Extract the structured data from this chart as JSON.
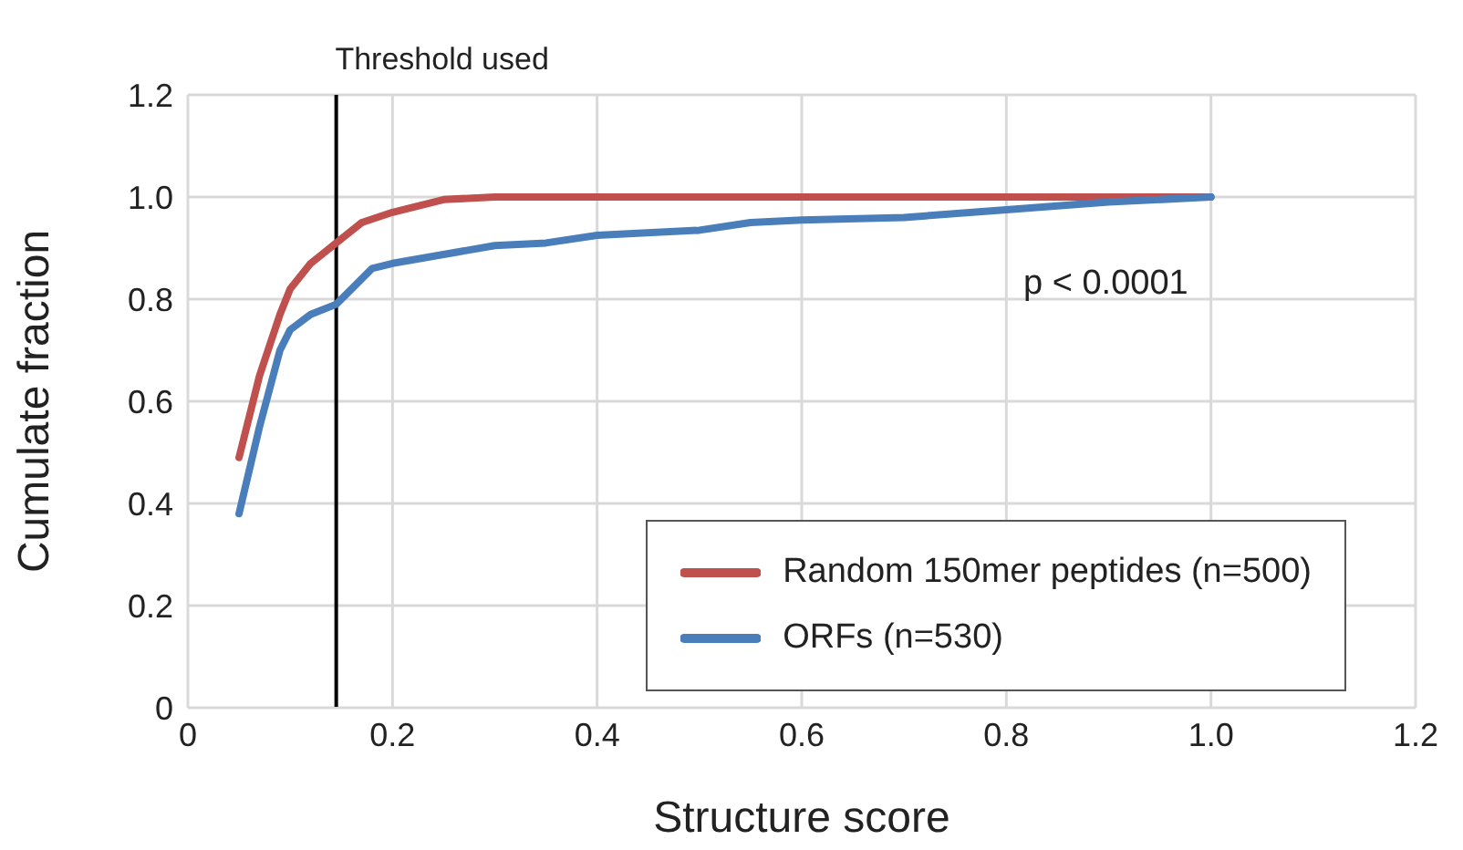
{
  "chart_data": {
    "type": "line",
    "xlabel": "Structure score",
    "ylabel": "Cumulate fraction",
    "xlim": [
      0,
      1.2
    ],
    "xticks": [
      0,
      0.2,
      0.4,
      0.6,
      0.8,
      {
        "value": 1,
        "label": "1.0"
      },
      1.2
    ],
    "ylim": [
      0,
      1.2
    ],
    "yticks": [
      0,
      0.2,
      0.4,
      0.6,
      0.8,
      {
        "value": 1,
        "label": "1.0"
      },
      1.2
    ],
    "grid": true,
    "legend": "bottom right",
    "marker": "none",
    "line_style": "solid",
    "series": [
      {
        "name": "Random 150mer peptides (n=500)",
        "color": "#c0504d",
        "x": [
          0.05,
          0.07,
          0.09,
          0.1,
          0.12,
          0.145,
          0.17,
          0.2,
          0.25,
          0.3,
          0.5,
          1.0
        ],
        "values": [
          0.49,
          0.65,
          0.77,
          0.82,
          0.87,
          0.91,
          0.95,
          0.97,
          0.995,
          1.0,
          1.0,
          1.0
        ]
      },
      {
        "name": "ORFs (n=530)",
        "color": "#4a7ebb",
        "x": [
          0.05,
          0.07,
          0.09,
          0.1,
          0.12,
          0.145,
          0.16,
          0.18,
          0.2,
          0.3,
          0.35,
          0.4,
          0.5,
          0.55,
          0.6,
          0.7,
          0.8,
          0.9,
          1.0
        ],
        "values": [
          0.38,
          0.55,
          0.7,
          0.74,
          0.77,
          0.79,
          0.82,
          0.86,
          0.87,
          0.905,
          0.91,
          0.925,
          0.935,
          0.95,
          0.955,
          0.96,
          0.975,
          0.99,
          1.0
        ]
      }
    ],
    "ref_lines": [
      {
        "axis": "x",
        "value": 0.145,
        "label": "Threshold used",
        "color": "#000000"
      }
    ],
    "annotations": [
      "p < 0.0001"
    ]
  }
}
